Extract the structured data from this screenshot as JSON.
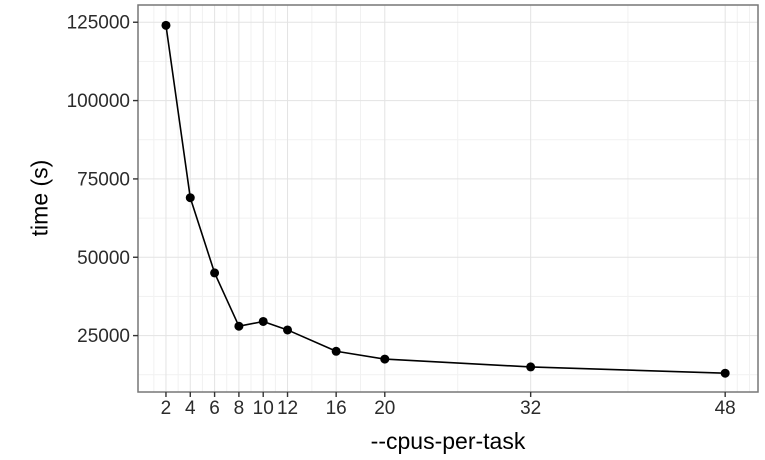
{
  "figure": {
    "background": "#ffffff",
    "panel_border_color": "#777777",
    "grid_major_color": "#e3e3e3",
    "grid_minor_color": "#f1f1f1",
    "tick_mark_color": "#333333",
    "tick_label_color": "#2b2b2b",
    "axis_title_color": "#000000",
    "line_color": "#000000",
    "point_color": "#000000"
  },
  "chart_data": {
    "type": "line",
    "title": "",
    "xlabel": "--cpus-per-task",
    "ylabel": "time (s)",
    "x": [
      2,
      4,
      6,
      8,
      10,
      12,
      16,
      20,
      32,
      48
    ],
    "y": [
      124000,
      69000,
      45000,
      28000,
      29500,
      26800,
      20000,
      17500,
      15000,
      13000
    ],
    "x_ticks": [
      2,
      4,
      6,
      8,
      10,
      12,
      16,
      20,
      32,
      48
    ],
    "x_tick_labels": [
      "2",
      "4",
      "6",
      "8",
      "10",
      "12",
      "16",
      "20",
      "32",
      "48"
    ],
    "x_minor_ticks": [
      1,
      3,
      5,
      7,
      9,
      11,
      14,
      18,
      26,
      40,
      49,
      50
    ],
    "y_ticks": [
      125000,
      100000,
      75000,
      50000,
      25000
    ],
    "y_tick_labels": [
      "125000",
      "100000",
      "75000",
      "50000",
      "25000"
    ],
    "y_minor_ticks": [
      112500,
      87500,
      62500,
      37500,
      12500
    ],
    "xlim": [
      -0.3,
      50.7
    ],
    "ylim": [
      7000,
      130500
    ],
    "grid": true,
    "legend": "none",
    "marker": "circle",
    "marker_radius": 4.5,
    "line_width": 1.6
  }
}
